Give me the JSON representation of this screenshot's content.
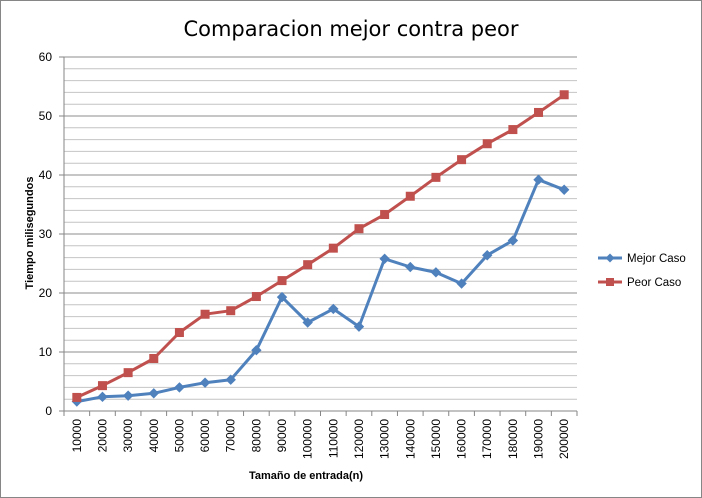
{
  "chart_data": {
    "type": "line",
    "title": "Comparacion mejor contra peor",
    "xlabel": "Tamaño  de entrada(n)",
    "ylabel": "Tiempo milisegundos",
    "ylim": [
      0,
      60
    ],
    "yticks": [
      "0",
      "10",
      "20",
      "30",
      "40",
      "50",
      "60"
    ],
    "grid": "horizontal, major and minor",
    "legend_position": "right",
    "categories": [
      "10000",
      "20000",
      "30000",
      "40000",
      "50000",
      "60000",
      "70000",
      "80000",
      "90000",
      "100000",
      "110000",
      "120000",
      "130000",
      "140000",
      "150000",
      "160000",
      "170000",
      "180000",
      "190000",
      "200000"
    ],
    "series": [
      {
        "name": "Mejor Caso",
        "color": "#4f81bd",
        "marker": "diamond",
        "values": [
          1.6,
          2.4,
          2.6,
          3.0,
          4.0,
          4.8,
          5.3,
          10.3,
          19.3,
          15.0,
          17.3,
          14.3,
          25.8,
          24.4,
          23.5,
          21.6,
          26.4,
          28.9,
          39.2,
          37.5
        ]
      },
      {
        "name": "Peor Caso",
        "color": "#c0504d",
        "marker": "square",
        "values": [
          2.3,
          4.3,
          6.5,
          8.9,
          13.3,
          16.4,
          17.0,
          19.4,
          22.1,
          24.8,
          27.6,
          30.9,
          33.3,
          36.4,
          39.6,
          42.6,
          45.3,
          47.7,
          50.6,
          53.6
        ]
      }
    ]
  }
}
